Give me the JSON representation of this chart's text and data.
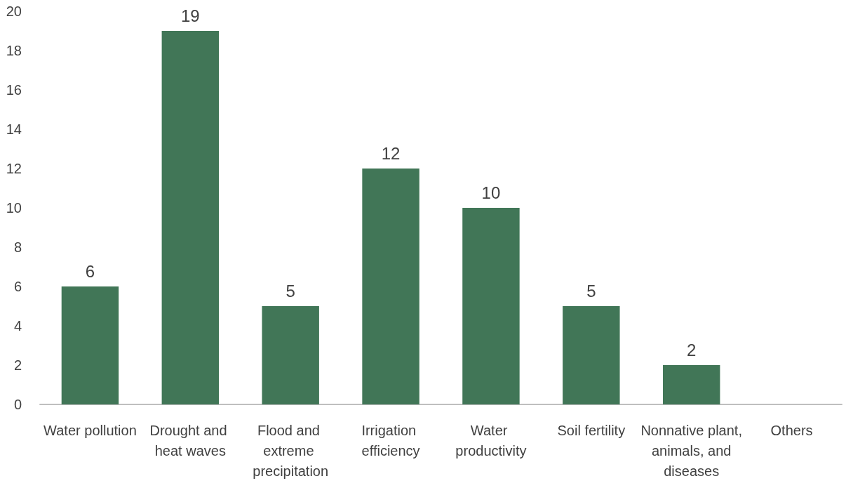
{
  "chart_data": {
    "type": "bar",
    "categories": [
      "Water pollution",
      "Drought and heat waves",
      "Flood and extreme precipitation",
      "Irrigation efficiency",
      "Water productivity",
      "Soil fertility",
      "Nonnative plant, animals, and diseases",
      "Others"
    ],
    "values": [
      6,
      19,
      5,
      12,
      10,
      5,
      2,
      0
    ],
    "value_labels": [
      "6",
      "19",
      "5",
      "12",
      "10",
      "5",
      "2",
      null
    ],
    "color": "#417657",
    "ylim": [
      0,
      20
    ],
    "yticks": [
      0,
      2,
      4,
      6,
      8,
      10,
      12,
      14,
      16,
      18,
      20
    ],
    "grid": false
  }
}
